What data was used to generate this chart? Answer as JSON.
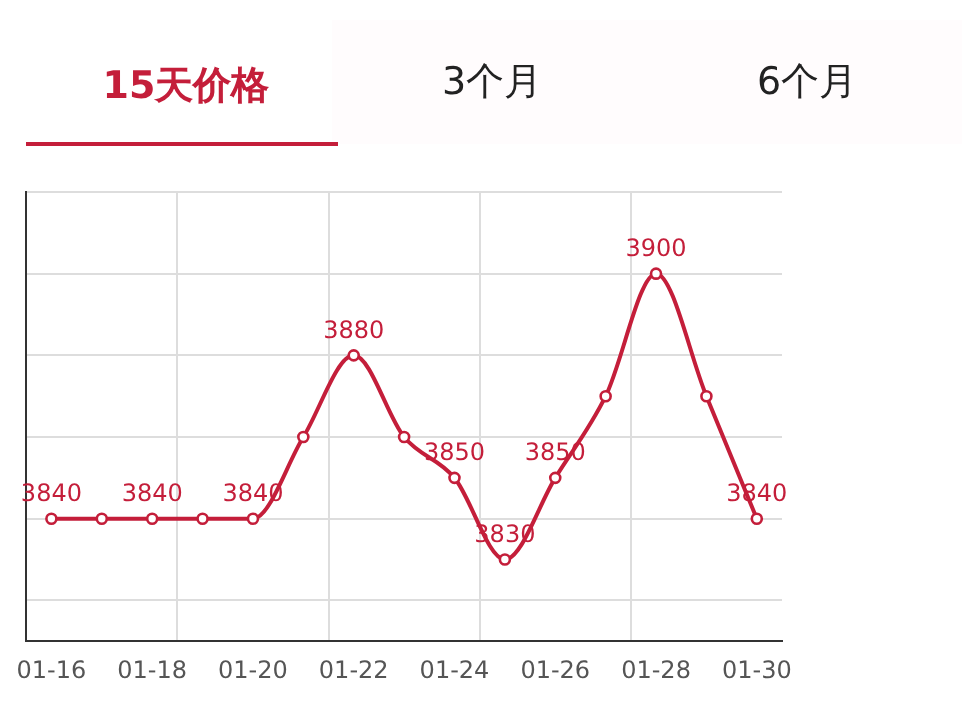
{
  "chart_data": {
    "type": "line",
    "title": "15天价格",
    "annotations": [
      "3个月",
      "6个月"
    ],
    "categories": [
      "01-16",
      null,
      "01-18",
      null,
      "01-20",
      null,
      "01-22",
      null,
      "01-24",
      null,
      "01-26",
      null,
      "01-28",
      null,
      "01-30"
    ],
    "series": [
      {
        "color": "#c41e3a",
        "values": [
          3840,
          3840,
          3840,
          3840,
          3840,
          3860,
          3880,
          3860,
          3850,
          3830,
          3850,
          3870,
          3900,
          3870,
          3840
        ],
        "value_labels": [
          "3840",
          null,
          "3840",
          null,
          "3840",
          null,
          "3880",
          null,
          "3850",
          "3830",
          "3850",
          null,
          "3900",
          null,
          "3840"
        ]
      }
    ],
    "ylim": [
      3810,
      3920
    ],
    "yticks": [
      {
        "value": 3820,
        "label": null
      },
      {
        "value": 3840,
        "label": null
      },
      {
        "value": 3860,
        "label": null
      },
      {
        "value": 3880,
        "label": null
      },
      {
        "value": 3900,
        "label": null
      },
      {
        "value": 3920,
        "label": null
      }
    ],
    "tick_labels": "x",
    "grid": true,
    "marker": "circle",
    "line_style": "solid",
    "legend": false
  }
}
